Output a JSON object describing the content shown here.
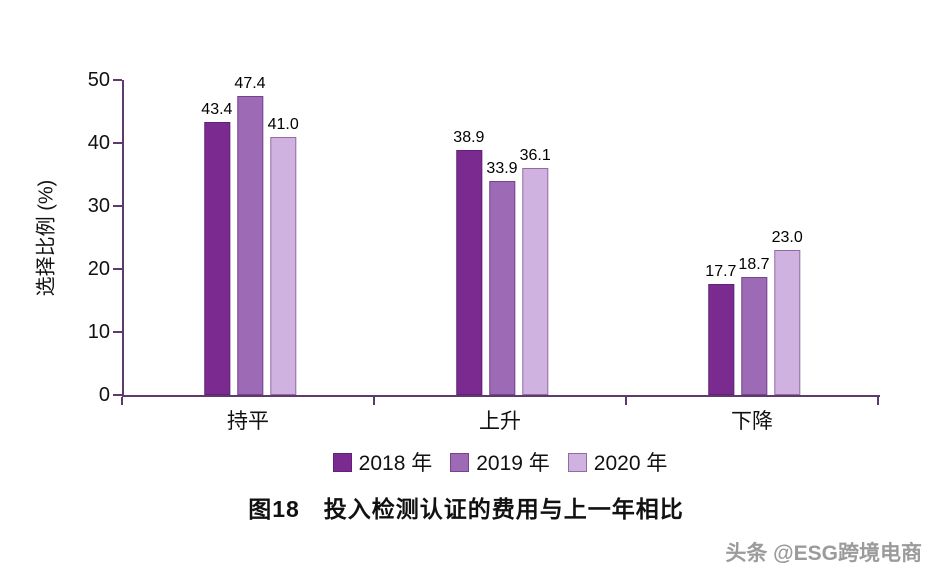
{
  "chart_data": {
    "type": "bar",
    "title": "图18　投入检测认证的费用与上一年相比",
    "ylabel": "选择比例 (%)",
    "ylim": [
      0,
      50
    ],
    "yticks": [
      0,
      10,
      20,
      30,
      40,
      50
    ],
    "categories": [
      "持平",
      "上升",
      "下降"
    ],
    "series": [
      {
        "name": "2018 年",
        "color": "#7b2b8f",
        "values": [
          43.4,
          38.9,
          17.7
        ]
      },
      {
        "name": "2019 年",
        "color": "#9d6ab5",
        "values": [
          47.4,
          33.9,
          18.7
        ]
      },
      {
        "name": "2020 年",
        "color": "#d0b2e0",
        "values": [
          41.0,
          36.1,
          23.0
        ]
      }
    ],
    "legend_position": "bottom",
    "grid": false,
    "axis_color": "#5e3a6e"
  },
  "watermark": "头条 @ESG跨境电商"
}
